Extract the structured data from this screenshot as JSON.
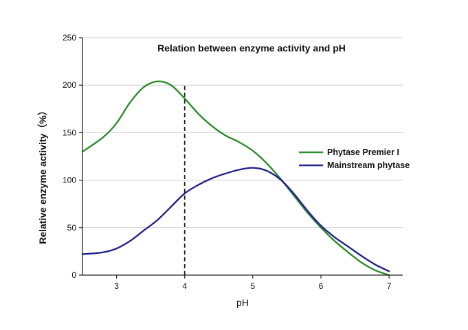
{
  "chart_data": {
    "type": "line",
    "title": "Relation between enzyme activity and pH",
    "xlabel": "pH",
    "ylabel": "Relative enzyme activity（%）",
    "xlim": [
      2.5,
      7.2
    ],
    "ylim": [
      0,
      250
    ],
    "xticks": [
      3,
      4,
      5,
      6,
      7
    ],
    "yticks": [
      0,
      50,
      100,
      150,
      200,
      250
    ],
    "grid": "horizontal",
    "legend_position": "right",
    "reference_line": {
      "x": 4,
      "style": "dashed"
    },
    "series": [
      {
        "name": "Phytase Premier I",
        "color": "#2e8b2e",
        "points": [
          [
            2.5,
            130
          ],
          [
            2.8,
            145
          ],
          [
            3.0,
            160
          ],
          [
            3.2,
            182
          ],
          [
            3.4,
            198
          ],
          [
            3.6,
            204
          ],
          [
            3.8,
            200
          ],
          [
            4.0,
            186
          ],
          [
            4.2,
            170
          ],
          [
            4.4,
            157
          ],
          [
            4.6,
            147
          ],
          [
            4.8,
            140
          ],
          [
            5.0,
            131
          ],
          [
            5.2,
            118
          ],
          [
            5.4,
            102
          ],
          [
            5.6,
            84
          ],
          [
            5.8,
            66
          ],
          [
            6.0,
            50
          ],
          [
            6.2,
            36
          ],
          [
            6.4,
            24
          ],
          [
            6.6,
            13
          ],
          [
            6.8,
            5
          ],
          [
            7.0,
            0
          ]
        ]
      },
      {
        "name": "Mainstream phytase",
        "color": "#23238c",
        "points": [
          [
            2.5,
            22
          ],
          [
            2.8,
            24
          ],
          [
            3.0,
            28
          ],
          [
            3.2,
            36
          ],
          [
            3.4,
            47
          ],
          [
            3.6,
            58
          ],
          [
            3.8,
            72
          ],
          [
            4.0,
            86
          ],
          [
            4.2,
            95
          ],
          [
            4.4,
            102
          ],
          [
            4.6,
            107
          ],
          [
            4.8,
            111
          ],
          [
            5.0,
            113
          ],
          [
            5.2,
            110
          ],
          [
            5.4,
            101
          ],
          [
            5.6,
            86
          ],
          [
            5.8,
            68
          ],
          [
            6.0,
            52
          ],
          [
            6.2,
            40
          ],
          [
            6.4,
            30
          ],
          [
            6.6,
            20
          ],
          [
            6.8,
            11
          ],
          [
            7.0,
            4
          ]
        ]
      }
    ]
  }
}
